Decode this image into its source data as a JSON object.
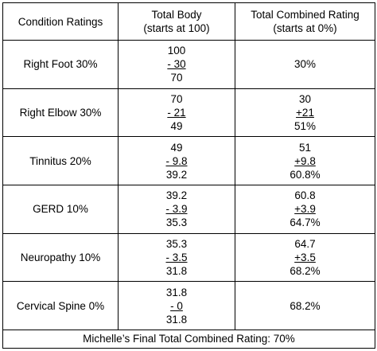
{
  "headers": {
    "condition": "Condition Ratings",
    "body_line1": "Total Body",
    "body_line2": "(starts at 100)",
    "combined_line1": "Total Combined Rating",
    "combined_line2": "(starts at 0%)"
  },
  "rows": [
    {
      "condition": "Right Foot 30%",
      "body": [
        "100",
        "- 30",
        "70"
      ],
      "combined": [
        "30%"
      ]
    },
    {
      "condition": "Right Elbow 30%",
      "body": [
        "70",
        "- 21",
        "49"
      ],
      "combined": [
        "30",
        "+21",
        "51%"
      ]
    },
    {
      "condition": "Tinnitus 20%",
      "body": [
        "49",
        "- 9.8",
        "39.2"
      ],
      "combined": [
        "51",
        "+9.8",
        "60.8%"
      ]
    },
    {
      "condition": "GERD 10%",
      "body": [
        "39.2",
        "- 3.9",
        "35.3"
      ],
      "combined": [
        "60.8",
        "+3.9",
        "64.7%"
      ]
    },
    {
      "condition": "Neuropathy 10%",
      "body": [
        "35.3",
        "- 3.5",
        "31.8"
      ],
      "combined": [
        "64.7",
        "+3.5",
        "68.2%"
      ]
    },
    {
      "condition": "Cervical Spine 0%",
      "body": [
        "31.8",
        "- 0",
        "31.8"
      ],
      "combined": [
        "68.2%"
      ]
    }
  ],
  "footer": "Michelle’s Final Total Combined Rating: 70%"
}
